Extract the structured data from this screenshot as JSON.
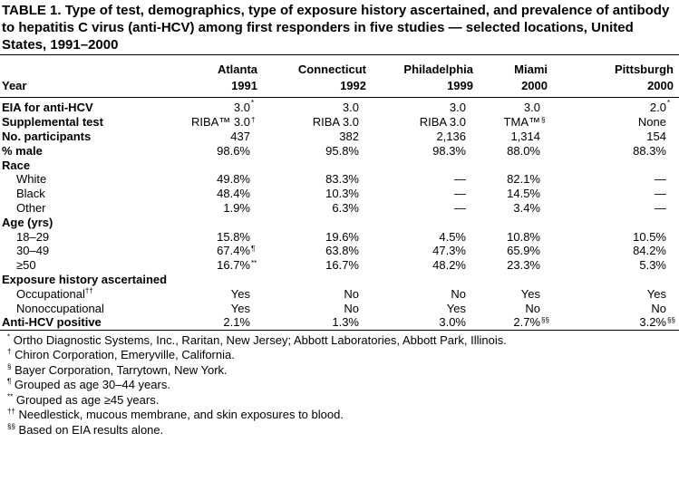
{
  "title": "TABLE 1. Type of test, demographics, type of exposure history ascertained, and prevalence of antibody to hepatitis C virus (anti-HCV) among first responders in five studies — selected locations, United States, 1991–2000",
  "table": {
    "year_label": "Year",
    "columns": [
      {
        "location": "Atlanta",
        "year": "1991"
      },
      {
        "location": "Connecticut",
        "year": "1992"
      },
      {
        "location": "Philadelphia",
        "year": "1999"
      },
      {
        "location": "Miami",
        "year": "2000"
      },
      {
        "location": "Pittsburgh",
        "year": "2000"
      }
    ],
    "rows": [
      {
        "label": "EIA for anti-HCV",
        "bold": true,
        "cells": [
          {
            "text": "3.0",
            "note": "*"
          },
          "3.0",
          "3.0",
          "3.0",
          {
            "text": "2.0",
            "note": "*"
          }
        ]
      },
      {
        "label": "Supplemental test",
        "bold": true,
        "cells": [
          {
            "text": "RIBA™ 3.0",
            "note": "†"
          },
          "RIBA 3.0",
          "RIBA 3.0",
          {
            "text": "TMA™",
            "note": "§"
          },
          "None"
        ]
      },
      {
        "label": "No. participants",
        "bold": true,
        "cells": [
          "437",
          "382",
          "2,136",
          "1,314",
          "154"
        ]
      },
      {
        "label": "% male",
        "bold": true,
        "cells": [
          "98.6%",
          "95.8%",
          "98.3%",
          "88.0%",
          "88.3%"
        ]
      },
      {
        "label": "Race",
        "bold": true,
        "cells": []
      },
      {
        "label": "White",
        "cells": [
          "49.8%",
          "83.3%",
          "—",
          "82.1%",
          "—"
        ]
      },
      {
        "label": "Black",
        "cells": [
          "48.4%",
          "10.3%",
          "—",
          "14.5%",
          "—"
        ]
      },
      {
        "label": "Other",
        "cells": [
          "1.9%",
          "6.3%",
          "—",
          "3.4%",
          "—"
        ]
      },
      {
        "label": "Age (yrs)",
        "bold": true,
        "cells": []
      },
      {
        "label": "18–29",
        "cells": [
          "15.8%",
          "19.6%",
          "4.5%",
          "10.8%",
          "10.5%"
        ]
      },
      {
        "label": "30–49",
        "cells": [
          {
            "text": "67.4%",
            "note": "¶"
          },
          "63.8%",
          "47.3%",
          "65.9%",
          "84.2%"
        ]
      },
      {
        "label": "≥50",
        "cells": [
          {
            "text": "16.7%",
            "note": "**"
          },
          "16.7%",
          "48.2%",
          "23.3%",
          "5.3%"
        ]
      },
      {
        "label": "Exposure history ascertained",
        "bold": true,
        "cells": []
      },
      {
        "label": "Occupational",
        "note": "††",
        "cells": [
          "Yes",
          "No",
          "No",
          "Yes",
          "Yes"
        ]
      },
      {
        "label": "Nonoccupational",
        "cells": [
          "Yes",
          "No",
          "Yes",
          "No",
          "No"
        ]
      },
      {
        "label": "Anti-HCV positive",
        "bold": true,
        "cells": [
          "2.1%",
          "1.3%",
          "3.0%",
          {
            "text": "2.7%",
            "note": "§§"
          },
          {
            "text": "3.2%",
            "note": "§§"
          }
        ]
      }
    ]
  },
  "footnotes": [
    {
      "mark": "*",
      "text": "Ortho Diagnostic Systems, Inc., Raritan, New Jersey; Abbott Laboratories, Abbott Park, Illinois."
    },
    {
      "mark": "†",
      "text": "Chiron Corporation, Emeryville, California."
    },
    {
      "mark": "§",
      "text": "Bayer Corporation, Tarrytown, New York."
    },
    {
      "mark": "¶",
      "text": "Grouped as age 30–44 years."
    },
    {
      "mark": "**",
      "text": "Grouped as age ≥45 years."
    },
    {
      "mark": "††",
      "text": "Needlestick, mucous membrane, and skin exposures to blood."
    },
    {
      "mark": "§§",
      "text": "Based on EIA results alone."
    }
  ]
}
